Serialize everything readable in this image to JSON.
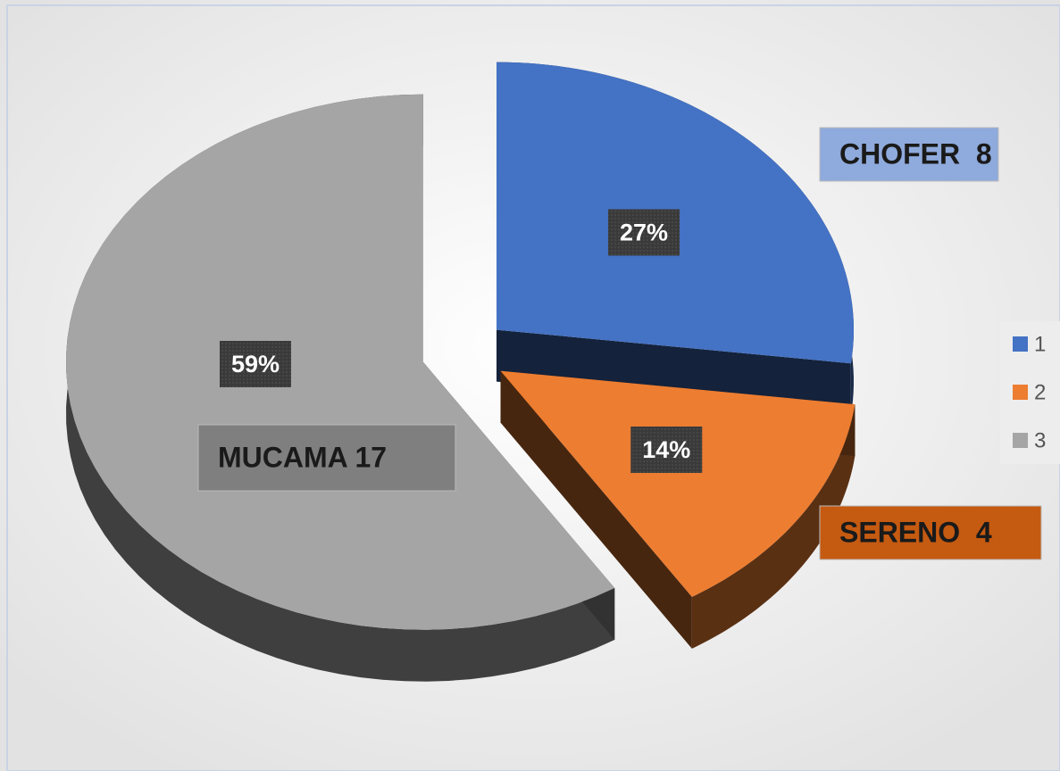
{
  "chart_data": {
    "type": "pie",
    "categories": [
      "1",
      "2",
      "3"
    ],
    "values": [
      27,
      14,
      59
    ],
    "value_labels": [
      "27%",
      "14%",
      "59%"
    ],
    "colors": [
      "#4472c4",
      "#ed7d31",
      "#a5a5a5"
    ],
    "annotations": [
      "CHOFER  8",
      "SERENO  4",
      "MUCAMA 17"
    ],
    "legend": "right"
  }
}
